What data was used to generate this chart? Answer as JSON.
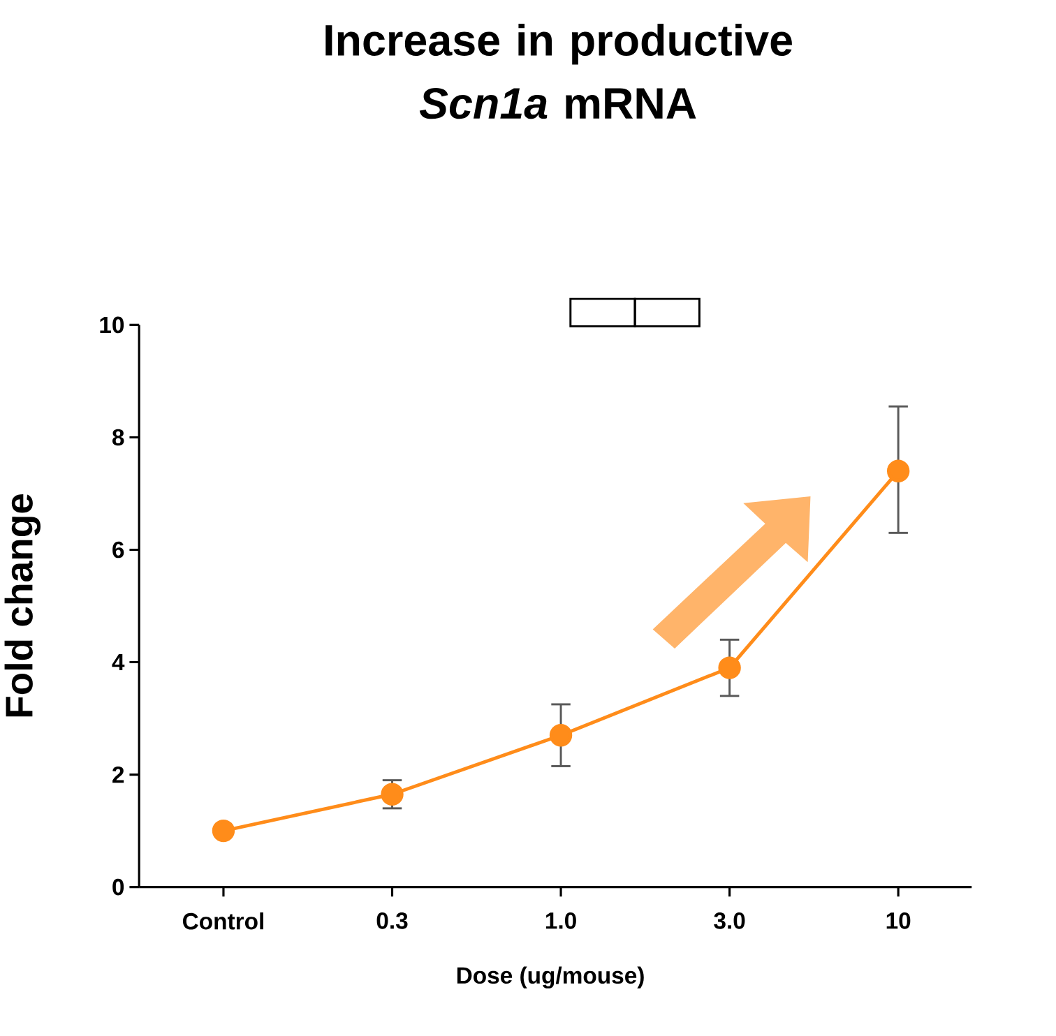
{
  "chart_data": {
    "type": "line",
    "title": "Increase in productive *Scn1a* mRNA",
    "xlabel": "Dose (ug/mouse)",
    "ylabel": "Fold change",
    "categories": [
      "Control",
      "0.3",
      "1.0",
      "3.0",
      "10"
    ],
    "series": [
      {
        "color": "#ff8c1a",
        "values": [
          1.0,
          1.65,
          2.7,
          3.9,
          7.4
        ],
        "errors": [
          null,
          [
            1.4,
            1.9
          ],
          [
            2.15,
            3.25
          ],
          [
            3.4,
            4.4
          ],
          [
            6.3,
            8.55
          ]
        ]
      }
    ],
    "ylim": [
      0,
      10
    ],
    "yticks": [
      0,
      2,
      4,
      6,
      8,
      10
    ],
    "marker": "circle",
    "line_style": "solid",
    "grid": false
  }
}
